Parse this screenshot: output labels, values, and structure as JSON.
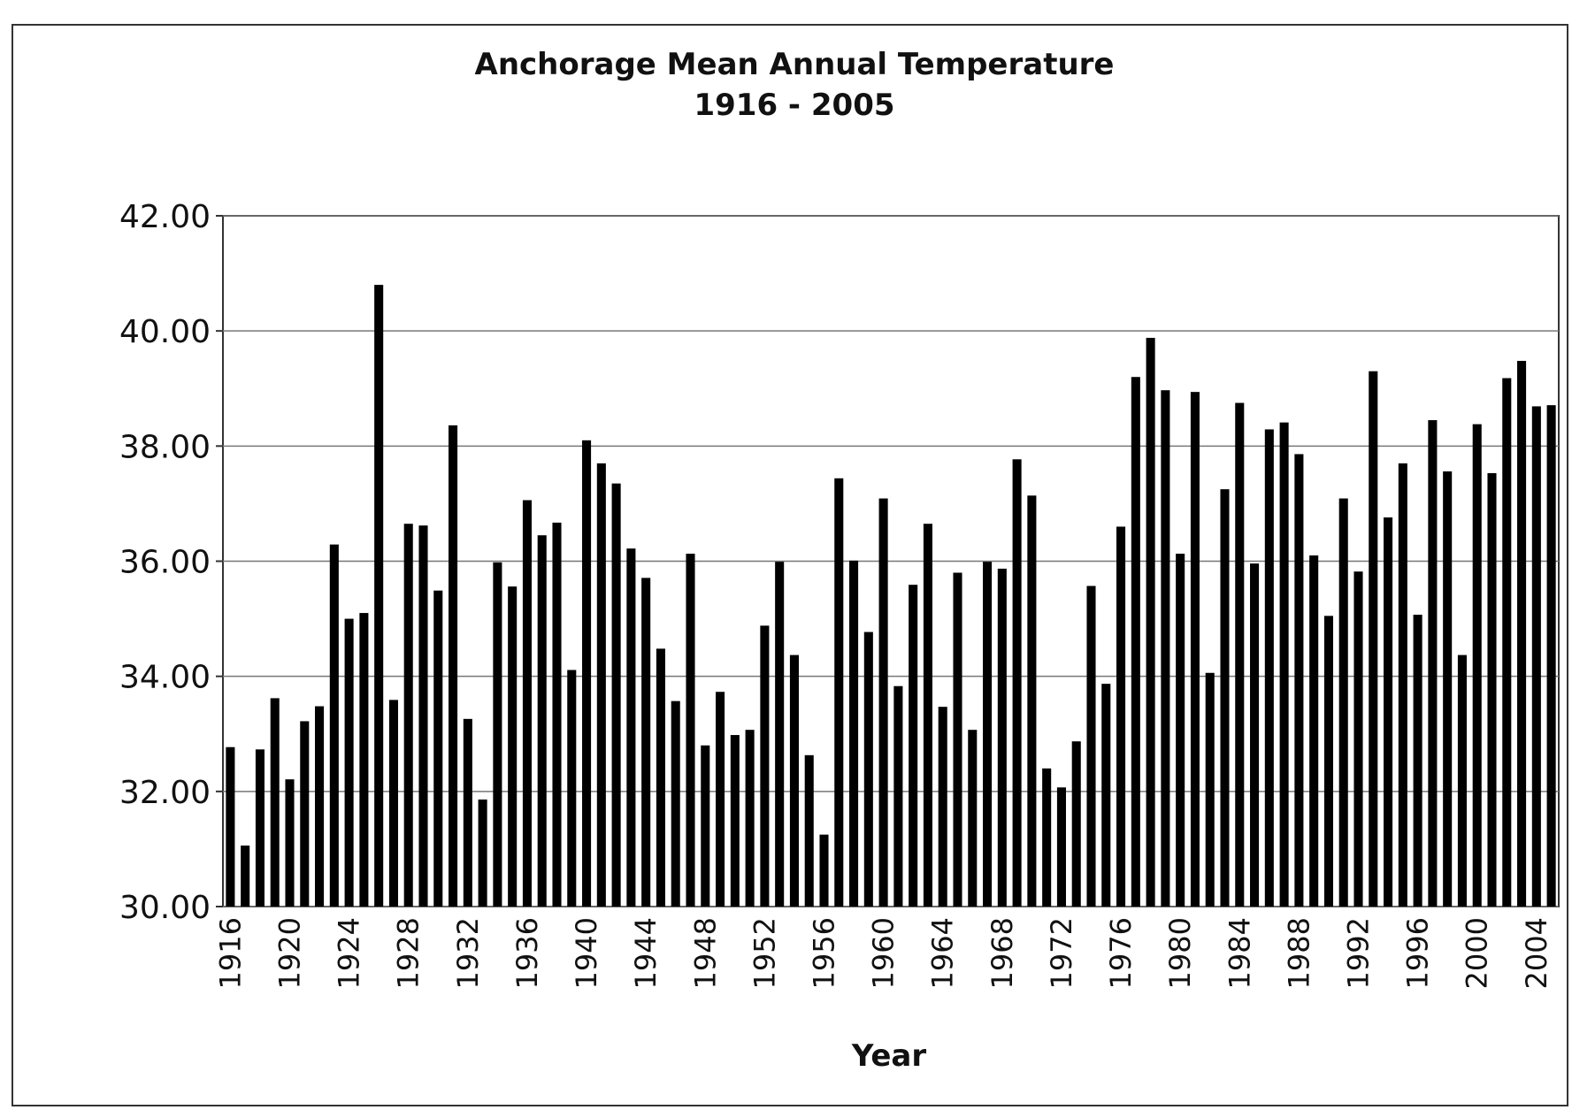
{
  "chart_data": {
    "type": "bar",
    "title": "Anchorage Mean Annual Temperature",
    "subtitle": "1916 - 2005",
    "x_label": "Year",
    "color": "#000000",
    "grid": true,
    "categories": [
      "1916",
      null,
      null,
      null,
      "1920",
      null,
      null,
      null,
      "1924",
      null,
      null,
      null,
      "1928",
      null,
      null,
      null,
      "1932",
      null,
      null,
      null,
      "1936",
      null,
      null,
      null,
      "1940",
      null,
      null,
      null,
      "1944",
      null,
      null,
      null,
      "1948",
      null,
      null,
      null,
      "1952",
      null,
      null,
      null,
      "1956",
      null,
      null,
      null,
      "1960",
      null,
      null,
      null,
      "1964",
      null,
      null,
      null,
      "1968",
      null,
      null,
      null,
      "1972",
      null,
      null,
      null,
      "1976",
      null,
      null,
      null,
      "1980",
      null,
      null,
      null,
      "1984",
      null,
      null,
      null,
      "1988",
      null,
      null,
      null,
      "1992",
      null,
      null,
      null,
      "1996",
      null,
      null,
      null,
      "2000",
      null,
      null,
      null,
      "2004",
      null
    ],
    "values": [
      32.77,
      31.06,
      32.73,
      33.62,
      32.21,
      33.22,
      33.48,
      36.29,
      35.0,
      35.1,
      40.8,
      33.59,
      36.65,
      36.62,
      35.49,
      38.36,
      33.26,
      31.86,
      35.98,
      35.56,
      37.06,
      36.45,
      36.67,
      34.11,
      38.1,
      37.7,
      37.35,
      36.22,
      35.71,
      34.48,
      33.57,
      36.13,
      32.8,
      33.73,
      32.98,
      33.07,
      34.88,
      35.99,
      34.37,
      32.63,
      31.25,
      37.44,
      36.01,
      34.77,
      37.09,
      33.83,
      35.59,
      36.65,
      33.47,
      35.8,
      33.07,
      35.99,
      35.87,
      37.77,
      37.14,
      32.4,
      32.07,
      32.87,
      35.57,
      33.87,
      36.6,
      39.2,
      39.88,
      38.97,
      36.13,
      38.94,
      34.06,
      37.25,
      38.75,
      35.96,
      38.29,
      38.41,
      37.86,
      36.1,
      35.05,
      37.09,
      35.82,
      39.3,
      36.76,
      37.7,
      35.07,
      38.45,
      37.56,
      34.37,
      38.38,
      37.53,
      39.18,
      39.48,
      38.69,
      38.71
    ],
    "ylim": [
      30,
      42
    ],
    "yticks": [
      {
        "value": 30,
        "label": "30.00"
      },
      {
        "value": 32,
        "label": "32.00"
      },
      {
        "value": 34,
        "label": "34.00"
      },
      {
        "value": 36,
        "label": "36.00"
      },
      {
        "value": 38,
        "label": "38.00"
      },
      {
        "value": 40,
        "label": "40.00"
      },
      {
        "value": 42,
        "label": "42.00"
      }
    ]
  }
}
